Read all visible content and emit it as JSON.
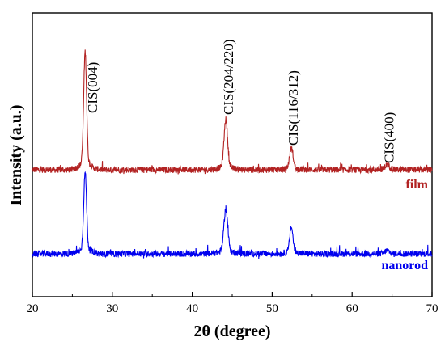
{
  "chart_data": {
    "type": "line",
    "xlabel": "2θ (degree)",
    "ylabel": "Intensity (a.u.)",
    "xlim": [
      20,
      70
    ],
    "xticks": [
      20,
      30,
      40,
      50,
      60,
      70
    ],
    "yticks": false,
    "grid": false,
    "y_units": "relative intensity (offset stacked)",
    "series": [
      {
        "name": "film",
        "color": "#b22222",
        "baseline": 0.0,
        "offset": 1.0,
        "peaks": [
          {
            "x": 26.6,
            "height": 1.45,
            "width": 0.18
          },
          {
            "x": 44.2,
            "height": 0.62,
            "width": 0.22
          },
          {
            "x": 52.4,
            "height": 0.27,
            "width": 0.22
          },
          {
            "x": 64.4,
            "height": 0.06,
            "width": 0.3
          }
        ]
      },
      {
        "name": "nanorod",
        "color": "#0000ee",
        "baseline": 0.0,
        "offset": 0.0,
        "peaks": [
          {
            "x": 26.6,
            "height": 1.0,
            "width": 0.18
          },
          {
            "x": 44.2,
            "height": 0.55,
            "width": 0.24
          },
          {
            "x": 52.4,
            "height": 0.33,
            "width": 0.2
          },
          {
            "x": 64.4,
            "height": 0.04,
            "width": 0.3
          }
        ]
      }
    ],
    "annotations": [
      {
        "text": "CIS(004)",
        "x": 27.5,
        "rotation": -90
      },
      {
        "text": "CIS(204/220)",
        "x": 44.5,
        "rotation": -90
      },
      {
        "text": "CIS(116/312)",
        "x": 52.6,
        "rotation": -90
      },
      {
        "text": "CIS(400)",
        "x": 64.6,
        "rotation": -90
      }
    ]
  }
}
